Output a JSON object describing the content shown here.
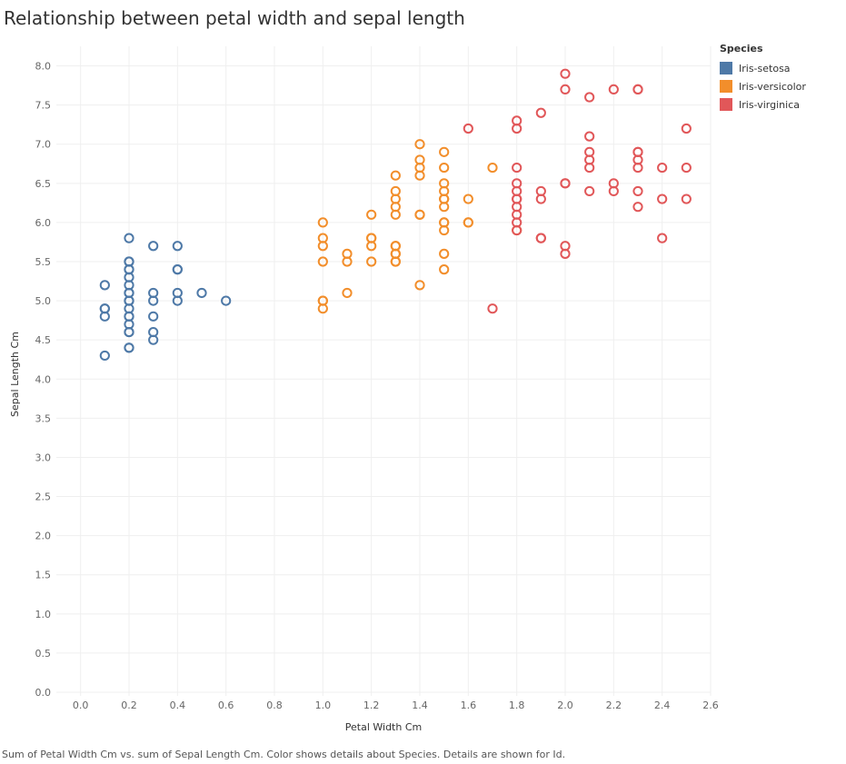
{
  "chart_data": {
    "type": "scatter",
    "title": "Relationship between petal width and sepal length",
    "xlabel": "Petal Width Cm",
    "ylabel": "Sepal Length Cm",
    "xlim": [
      -0.1,
      2.6
    ],
    "ylim": [
      0,
      8.25
    ],
    "x_ticks": [
      "0.0",
      "0.2",
      "0.4",
      "0.6",
      "0.8",
      "1.0",
      "1.2",
      "1.4",
      "1.6",
      "1.8",
      "2.0",
      "2.2",
      "2.4",
      "2.6"
    ],
    "y_ticks": [
      "0.0",
      "0.5",
      "1.0",
      "1.5",
      "2.0",
      "2.5",
      "3.0",
      "3.5",
      "4.0",
      "4.5",
      "5.0",
      "5.5",
      "6.0",
      "6.5",
      "7.0",
      "7.5",
      "8.0"
    ],
    "legend_title": "Species",
    "caption": "Sum of Petal Width Cm vs. sum of Sepal Length Cm.  Color shows details about Species.  Details are shown for Id.",
    "series": [
      {
        "name": "Iris-setosa",
        "color": "#4e79a7",
        "points": [
          [
            0.1,
            4.3
          ],
          [
            0.1,
            4.8
          ],
          [
            0.1,
            4.9
          ],
          [
            0.1,
            4.9
          ],
          [
            0.1,
            5.2
          ],
          [
            0.2,
            4.4
          ],
          [
            0.2,
            4.4
          ],
          [
            0.2,
            4.6
          ],
          [
            0.2,
            4.6
          ],
          [
            0.2,
            4.7
          ],
          [
            0.2,
            4.8
          ],
          [
            0.2,
            4.8
          ],
          [
            0.2,
            4.9
          ],
          [
            0.2,
            5.0
          ],
          [
            0.2,
            5.0
          ],
          [
            0.2,
            5.1
          ],
          [
            0.2,
            5.1
          ],
          [
            0.2,
            5.2
          ],
          [
            0.2,
            5.3
          ],
          [
            0.2,
            5.4
          ],
          [
            0.2,
            5.4
          ],
          [
            0.2,
            5.5
          ],
          [
            0.2,
            5.5
          ],
          [
            0.2,
            5.8
          ],
          [
            0.3,
            4.5
          ],
          [
            0.3,
            4.6
          ],
          [
            0.3,
            4.8
          ],
          [
            0.3,
            5.0
          ],
          [
            0.3,
            5.1
          ],
          [
            0.3,
            5.7
          ],
          [
            0.4,
            5.0
          ],
          [
            0.4,
            5.1
          ],
          [
            0.4,
            5.4
          ],
          [
            0.4,
            5.4
          ],
          [
            0.4,
            5.7
          ],
          [
            0.5,
            5.1
          ],
          [
            0.6,
            5.0
          ]
        ]
      },
      {
        "name": "Iris-versicolor",
        "color": "#f28e2b",
        "points": [
          [
            1.0,
            4.9
          ],
          [
            1.0,
            5.0
          ],
          [
            1.0,
            5.0
          ],
          [
            1.0,
            5.5
          ],
          [
            1.0,
            5.7
          ],
          [
            1.0,
            5.8
          ],
          [
            1.0,
            6.0
          ],
          [
            1.1,
            5.1
          ],
          [
            1.1,
            5.5
          ],
          [
            1.1,
            5.6
          ],
          [
            1.2,
            5.5
          ],
          [
            1.2,
            5.7
          ],
          [
            1.2,
            5.8
          ],
          [
            1.2,
            5.8
          ],
          [
            1.2,
            6.1
          ],
          [
            1.3,
            5.5
          ],
          [
            1.3,
            5.5
          ],
          [
            1.3,
            5.6
          ],
          [
            1.3,
            5.6
          ],
          [
            1.3,
            5.7
          ],
          [
            1.3,
            5.7
          ],
          [
            1.3,
            6.1
          ],
          [
            1.3,
            6.2
          ],
          [
            1.3,
            6.3
          ],
          [
            1.3,
            6.4
          ],
          [
            1.3,
            6.6
          ],
          [
            1.4,
            5.2
          ],
          [
            1.4,
            6.1
          ],
          [
            1.4,
            6.1
          ],
          [
            1.4,
            6.6
          ],
          [
            1.4,
            6.7
          ],
          [
            1.4,
            6.8
          ],
          [
            1.4,
            7.0
          ],
          [
            1.5,
            5.4
          ],
          [
            1.5,
            5.6
          ],
          [
            1.5,
            5.9
          ],
          [
            1.5,
            6.0
          ],
          [
            1.5,
            6.0
          ],
          [
            1.5,
            6.2
          ],
          [
            1.5,
            6.3
          ],
          [
            1.5,
            6.3
          ],
          [
            1.5,
            6.4
          ],
          [
            1.5,
            6.5
          ],
          [
            1.5,
            6.7
          ],
          [
            1.5,
            6.9
          ],
          [
            1.6,
            6.0
          ],
          [
            1.6,
            6.0
          ],
          [
            1.6,
            6.3
          ],
          [
            1.7,
            6.7
          ],
          [
            1.8,
            5.9
          ]
        ]
      },
      {
        "name": "Iris-virginica",
        "color": "#e15759",
        "points": [
          [
            1.6,
            7.2
          ],
          [
            1.7,
            4.9
          ],
          [
            1.8,
            5.9
          ],
          [
            1.8,
            6.0
          ],
          [
            1.8,
            6.1
          ],
          [
            1.8,
            6.2
          ],
          [
            1.8,
            6.3
          ],
          [
            1.8,
            6.3
          ],
          [
            1.8,
            6.4
          ],
          [
            1.8,
            6.5
          ],
          [
            1.8,
            6.7
          ],
          [
            1.8,
            7.2
          ],
          [
            1.8,
            7.3
          ],
          [
            1.9,
            5.8
          ],
          [
            1.9,
            5.8
          ],
          [
            1.9,
            6.3
          ],
          [
            1.9,
            6.4
          ],
          [
            1.9,
            7.4
          ],
          [
            2.0,
            5.6
          ],
          [
            2.0,
            5.7
          ],
          [
            2.0,
            6.5
          ],
          [
            2.0,
            6.5
          ],
          [
            2.0,
            7.7
          ],
          [
            2.0,
            7.9
          ],
          [
            2.1,
            6.4
          ],
          [
            2.1,
            6.7
          ],
          [
            2.1,
            6.8
          ],
          [
            2.1,
            6.9
          ],
          [
            2.1,
            7.1
          ],
          [
            2.1,
            7.6
          ],
          [
            2.2,
            6.4
          ],
          [
            2.2,
            6.5
          ],
          [
            2.2,
            7.7
          ],
          [
            2.3,
            6.2
          ],
          [
            2.3,
            6.4
          ],
          [
            2.3,
            6.7
          ],
          [
            2.3,
            6.8
          ],
          [
            2.3,
            6.9
          ],
          [
            2.3,
            6.9
          ],
          [
            2.3,
            7.7
          ],
          [
            2.3,
            7.7
          ],
          [
            2.4,
            5.8
          ],
          [
            2.4,
            6.3
          ],
          [
            2.4,
            6.7
          ],
          [
            2.5,
            6.3
          ],
          [
            2.5,
            6.7
          ],
          [
            2.5,
            7.2
          ]
        ]
      }
    ]
  }
}
